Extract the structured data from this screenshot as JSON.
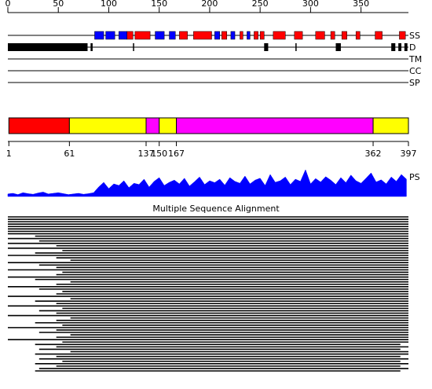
{
  "ruler": {
    "lim": [
      0,
      397
    ],
    "ticks": [
      0,
      50,
      100,
      150,
      200,
      250,
      300,
      350
    ]
  },
  "tracks": [
    {
      "label": "SS"
    },
    {
      "label": "D"
    },
    {
      "label": "TM"
    },
    {
      "label": "CC"
    },
    {
      "label": "SP"
    }
  ],
  "secondary_structure": {
    "helix_color": "#ff0000",
    "strand_color": "#0000ff",
    "helices": [
      [
        118,
        124
      ],
      [
        126,
        141
      ],
      [
        170,
        178
      ],
      [
        184,
        202
      ],
      [
        212,
        217
      ],
      [
        230,
        233
      ],
      [
        244,
        248
      ],
      [
        250,
        254
      ],
      [
        263,
        275
      ],
      [
        284,
        292
      ],
      [
        305,
        314
      ],
      [
        320,
        324
      ],
      [
        331,
        336
      ],
      [
        345,
        349
      ],
      [
        364,
        371
      ],
      [
        388,
        394
      ]
    ],
    "strands": [
      [
        86,
        95
      ],
      [
        97,
        106
      ],
      [
        110,
        118
      ],
      [
        146,
        155
      ],
      [
        160,
        166
      ],
      [
        205,
        210
      ],
      [
        221,
        225
      ],
      [
        237,
        240
      ]
    ]
  },
  "disorder": {
    "color": "#000000",
    "regions": [
      [
        0,
        79
      ],
      [
        82,
        84
      ],
      [
        124,
        125
      ],
      [
        254,
        258
      ],
      [
        285,
        286
      ],
      [
        325,
        330
      ],
      [
        380,
        384
      ],
      [
        387,
        390
      ],
      [
        393,
        396
      ]
    ]
  },
  "domains": {
    "segments": [
      {
        "start": 1,
        "end": 61,
        "color": "#ff0000"
      },
      {
        "start": 61,
        "end": 137,
        "color": "#ffff00"
      },
      {
        "start": 137,
        "end": 150,
        "color": "#ff00ff"
      },
      {
        "start": 150,
        "end": 167,
        "color": "#ffff00"
      },
      {
        "start": 167,
        "end": 362,
        "color": "#ff00ff"
      },
      {
        "start": 362,
        "end": 397,
        "color": "#ffff00"
      }
    ],
    "ticks": [
      1,
      61,
      137,
      150,
      167,
      362,
      397
    ]
  },
  "ps": {
    "label": "PS",
    "color": "#0000ff",
    "x": [
      0,
      5,
      10,
      15,
      20,
      25,
      30,
      35,
      40,
      45,
      50,
      55,
      60,
      65,
      70,
      75,
      80,
      85,
      90,
      95,
      100,
      105,
      110,
      115,
      120,
      125,
      130,
      135,
      140,
      145,
      150,
      155,
      160,
      165,
      170,
      175,
      180,
      185,
      190,
      195,
      200,
      205,
      210,
      215,
      220,
      225,
      230,
      235,
      240,
      245,
      250,
      255,
      260,
      265,
      270,
      275,
      280,
      285,
      290,
      295,
      300,
      305,
      310,
      315,
      320,
      325,
      330,
      335,
      340,
      345,
      350,
      355,
      360,
      365,
      370,
      375,
      380,
      385,
      390,
      395
    ],
    "values": [
      8,
      10,
      6,
      12,
      9,
      7,
      11,
      14,
      8,
      10,
      12,
      9,
      6,
      8,
      10,
      7,
      9,
      12,
      30,
      45,
      25,
      40,
      35,
      50,
      28,
      42,
      38,
      55,
      30,
      48,
      60,
      35,
      45,
      52,
      40,
      58,
      33,
      47,
      62,
      38,
      50,
      44,
      55,
      36,
      60,
      48,
      42,
      65,
      40,
      52,
      58,
      35,
      70,
      45,
      50,
      62,
      38,
      55,
      48,
      85,
      40,
      57,
      46,
      63,
      52,
      38,
      60,
      44,
      68,
      50,
      42,
      58,
      75,
      46,
      53,
      40,
      62,
      48,
      70,
      55
    ]
  },
  "msa": {
    "title": "Multiple Sequence Alignment",
    "rows": [
      [
        0,
        397
      ],
      [
        0,
        397
      ],
      [
        0,
        397
      ],
      [
        0,
        397
      ],
      [
        0,
        397
      ],
      [
        0,
        397
      ],
      [
        0,
        397
      ],
      [
        0,
        397
      ],
      [
        27,
        397
      ],
      [
        0,
        397
      ],
      [
        31,
        397
      ],
      [
        0,
        397
      ],
      [
        48,
        397
      ],
      [
        0,
        397
      ],
      [
        54,
        397
      ],
      [
        27,
        397
      ],
      [
        0,
        397
      ],
      [
        48,
        397
      ],
      [
        62,
        397
      ],
      [
        0,
        397
      ],
      [
        31,
        397
      ],
      [
        48,
        397
      ],
      [
        0,
        397
      ],
      [
        54,
        397
      ],
      [
        48,
        397
      ],
      [
        0,
        397
      ],
      [
        27,
        397
      ],
      [
        62,
        397
      ],
      [
        48,
        397
      ],
      [
        0,
        397
      ],
      [
        31,
        397
      ],
      [
        54,
        397
      ],
      [
        48,
        397
      ],
      [
        0,
        397
      ],
      [
        62,
        397
      ],
      [
        27,
        397
      ],
      [
        48,
        397
      ],
      [
        0,
        397
      ],
      [
        54,
        397
      ],
      [
        31,
        397
      ],
      [
        48,
        397
      ],
      [
        0,
        397
      ],
      [
        62,
        397
      ],
      [
        48,
        397
      ],
      [
        27,
        397
      ],
      [
        54,
        397
      ],
      [
        0,
        397
      ],
      [
        48,
        397
      ],
      [
        31,
        397
      ],
      [
        62,
        397
      ],
      [
        48,
        397
      ],
      [
        0,
        397
      ],
      [
        54,
        397
      ],
      [
        27,
        389
      ],
      [
        48,
        397
      ],
      [
        31,
        389
      ],
      [
        62,
        397
      ],
      [
        27,
        397
      ],
      [
        48,
        389
      ],
      [
        31,
        397
      ],
      [
        54,
        389
      ],
      [
        27,
        397
      ],
      [
        48,
        389
      ],
      [
        31,
        397
      ],
      [
        27,
        389
      ]
    ]
  }
}
